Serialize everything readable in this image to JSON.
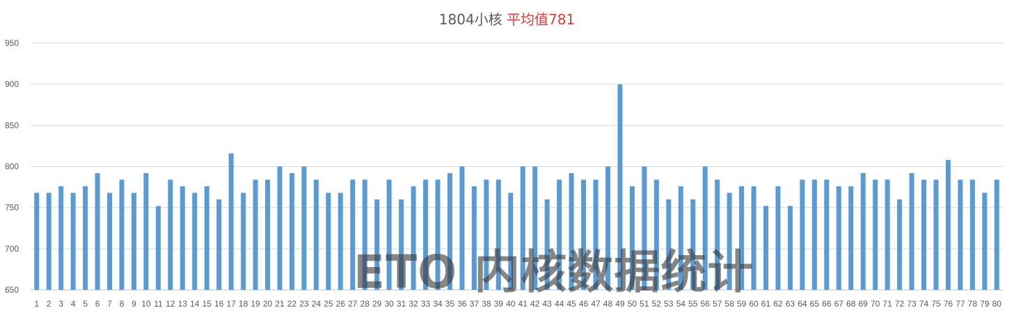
{
  "chart_data": {
    "type": "bar",
    "title": "1804小核",
    "title_highlight": "平均值781",
    "ylim": [
      650,
      950
    ],
    "yticks": [
      650,
      700,
      750,
      800,
      850,
      900,
      950
    ],
    "grid": true,
    "bar_color": "#5b9bd5",
    "highlight_color": "#e03b3b",
    "categories": [
      "1",
      "2",
      "3",
      "4",
      "5",
      "6",
      "7",
      "8",
      "9",
      "10",
      "11",
      "12",
      "13",
      "14",
      "15",
      "16",
      "17",
      "18",
      "19",
      "20",
      "21",
      "22",
      "23",
      "24",
      "25",
      "26",
      "27",
      "28",
      "29",
      "30",
      "31",
      "32",
      "33",
      "34",
      "35",
      "36",
      "37",
      "38",
      "39",
      "40",
      "41",
      "42",
      "43",
      "44",
      "45",
      "46",
      "47",
      "48",
      "49",
      "50",
      "51",
      "52",
      "53",
      "54",
      "55",
      "56",
      "57",
      "58",
      "59",
      "60",
      "61",
      "62",
      "63",
      "64",
      "65",
      "66",
      "67",
      "68",
      "69",
      "70",
      "71",
      "72",
      "73",
      "74",
      "75",
      "76",
      "77",
      "78",
      "79",
      "80"
    ],
    "values": [
      768,
      768,
      776,
      768,
      776,
      792,
      768,
      784,
      768,
      792,
      752,
      784,
      776,
      768,
      776,
      760,
      816,
      768,
      784,
      784,
      800,
      792,
      800,
      784,
      768,
      768,
      784,
      784,
      760,
      784,
      760,
      776,
      784,
      784,
      792,
      800,
      776,
      784,
      784,
      768,
      800,
      800,
      760,
      784,
      792,
      784,
      784,
      800,
      900,
      776,
      800,
      784,
      760,
      776,
      760,
      800,
      784,
      768,
      776,
      776,
      752,
      776,
      752,
      784,
      784,
      784,
      776,
      776,
      792,
      784,
      784,
      760,
      792,
      784,
      784,
      808,
      784,
      784,
      768,
      784
    ]
  },
  "watermark": "ETO 内核数据统计"
}
